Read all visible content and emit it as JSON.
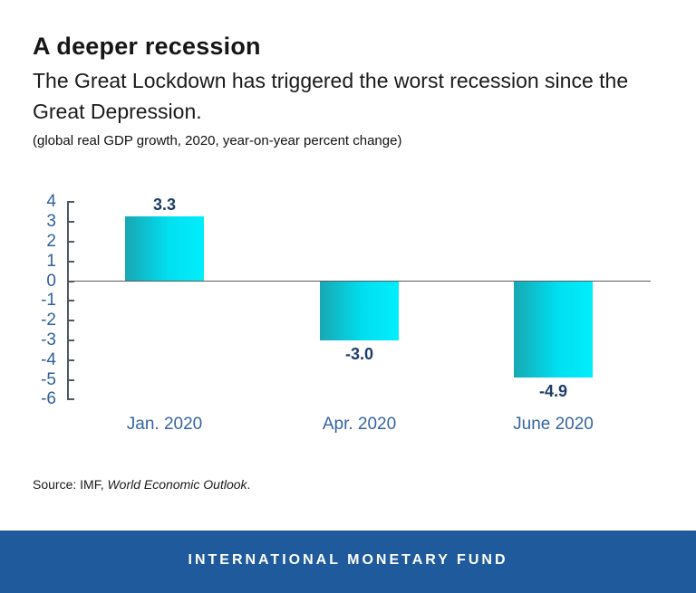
{
  "page": {
    "title": "A deeper recession",
    "subtitle_lines": [
      "The Great Lockdown has triggered the worst recession since the",
      "Great Depression."
    ],
    "unit_note": "(global real GDP growth, 2020, year-on-year percent change)",
    "source_prefix": "Source: IMF, ",
    "source_italic": "World Economic Outlook",
    "source_suffix": ".",
    "footer_text": "INTERNATIONAL MONETARY FUND"
  },
  "colors": {
    "value_label_navy": "#1d3c6b",
    "axis_label_blue": "#2f619e",
    "category_blue": "#3565a1",
    "axis_line": "#4d5a66",
    "zero_line": "#58595b",
    "bar_gradient_left": "#18a7b3",
    "bar_gradient_mid": "#00dff0",
    "bar_gradient_right": "#00eefc",
    "footer_bg": "#1e5a9c",
    "footer_text_color": "#ffffff"
  },
  "chart_data": {
    "type": "bar",
    "title": "A deeper recession",
    "subtitle": "The Great Lockdown has triggered the worst recession since the Great Depression.",
    "unit_note": "(global real GDP growth, 2020, year-on-year percent change)",
    "categories": [
      "Jan. 2020",
      "Apr. 2020",
      "June 2020"
    ],
    "values": [
      3.3,
      -3.0,
      -4.9
    ],
    "value_labels": [
      "3.3",
      "-3.0",
      "-4.9"
    ],
    "xlabel": "",
    "ylabel": "",
    "ylim": [
      -6,
      4
    ],
    "ytick_step": 1,
    "yticks": [
      4,
      3,
      2,
      1,
      0,
      -1,
      -2,
      -3,
      -4,
      -5,
      -6
    ],
    "grid": false,
    "legend": false,
    "source": "Source: IMF, World Economic Outlook."
  }
}
